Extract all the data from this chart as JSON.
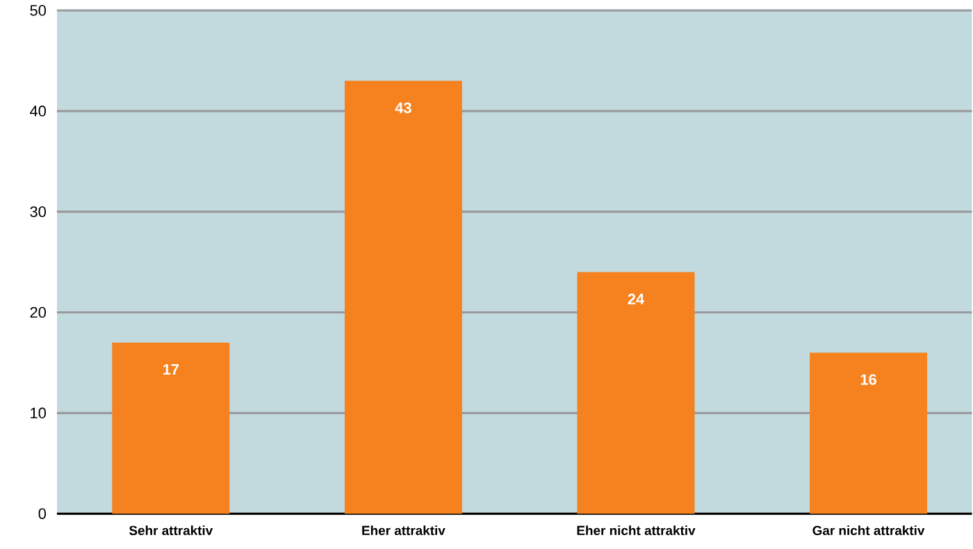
{
  "chart_data": {
    "type": "bar",
    "categories": [
      "Sehr attraktiv",
      "Eher attraktiv",
      "Eher nicht attraktiv",
      "Gar nicht attraktiv"
    ],
    "values": [
      17,
      43,
      24,
      16
    ],
    "color": "#f5821f",
    "ylim": [
      0,
      50
    ],
    "yticks": [
      0,
      10,
      20,
      30,
      40,
      50
    ],
    "grid": "y",
    "data_labels": true
  }
}
